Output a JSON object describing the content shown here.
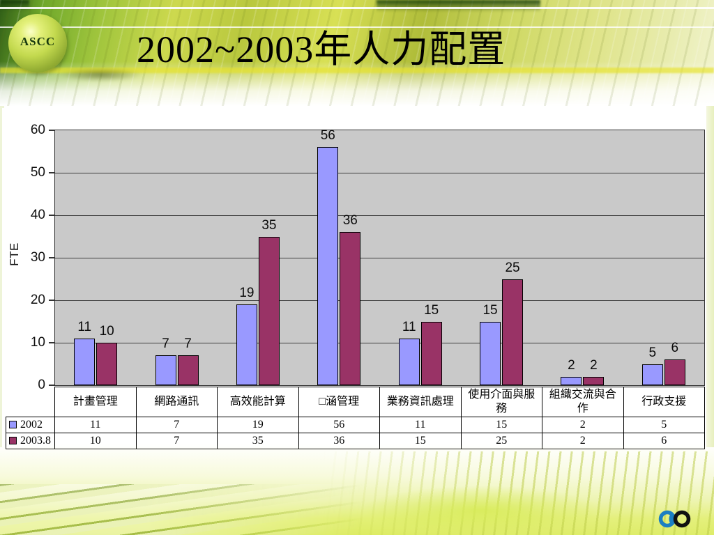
{
  "slide": {
    "title": "2002~2003年人力配置",
    "background_colors": {
      "header_green": "#9ec43c",
      "header_dark_green": "#2e5c16",
      "bottom_yellow_green": "#ddec62"
    }
  },
  "logo": {
    "text": "ASCC"
  },
  "footer": {
    "icon": "infinity-icon",
    "icon_colors": {
      "left_loop": "#1b7fc2",
      "right_loop": "#111111"
    }
  },
  "chart_data": {
    "type": "bar",
    "title": "2002~2003年人力配置",
    "xlabel": "",
    "ylabel": "FTE",
    "ylim": [
      0,
      60
    ],
    "yticks": [
      0,
      10,
      20,
      30,
      40,
      50,
      60
    ],
    "grid": true,
    "plot_background": "#c9c9c9",
    "gridline_color": "#3c3c3c",
    "data_labels": true,
    "legend_position": "table-left",
    "categories": [
      "計畫管理",
      "網路通訊",
      "高效能計算",
      "□涵管理",
      "業務資訊處理",
      "使用介面與服務",
      "組織交流與合作",
      "行政支援"
    ],
    "series": [
      {
        "name": "2002",
        "color": "#9999ff",
        "values": [
          11,
          7,
          19,
          56,
          11,
          15,
          2,
          5
        ]
      },
      {
        "name": "2003.8",
        "color": "#993366",
        "values": [
          10,
          7,
          35,
          36,
          15,
          25,
          2,
          6
        ]
      }
    ]
  }
}
